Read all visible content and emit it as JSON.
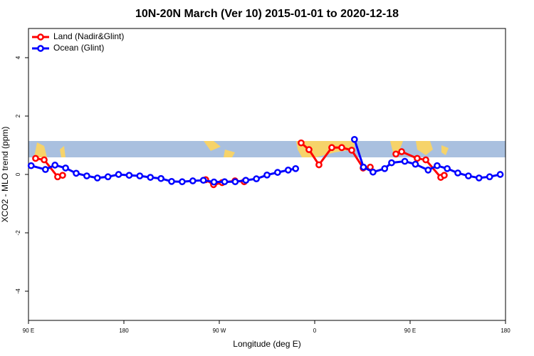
{
  "chart_data": {
    "type": "line",
    "title": "10N-20N March (Ver 10)   2015-01-01 to 2020-12-18",
    "x_label": "Longitude (deg E)",
    "y_label": "XCO2 - MLO trend (ppm)",
    "xlim": [
      90,
      540
    ],
    "ylim": [
      -5,
      5
    ],
    "xticks": [
      {
        "value": 90,
        "label": "90 E"
      },
      180,
      {
        "value": 270,
        "label": "90 W"
      },
      {
        "value": 360,
        "label": "0"
      },
      {
        "value": 450,
        "label": "90 E"
      },
      {
        "value": 540,
        "label": "180"
      }
    ],
    "yticks": [
      -4,
      -2,
      0,
      2,
      4
    ],
    "legend": "top-left",
    "series": [
      {
        "name": "Land (Nadir&Glint)",
        "color": "#ff0000",
        "x": [
          96.7,
          104.8,
          117.5,
          122.2,
          190,
          257.2,
          264.6,
          272.7,
          284.8,
          293.5,
          320,
          347.2,
          354.6,
          364,
          376.1,
          385.5,
          394.9,
          405.7,
          412.4,
          425,
          436.6,
          442,
          456.7,
          464.8,
          478.9,
          482.2
        ],
        "values": [
          0.55,
          0.5,
          -0.08,
          -0.03,
          null,
          -0.18,
          -0.35,
          -0.28,
          -0.22,
          -0.25,
          null,
          1.08,
          0.85,
          0.33,
          0.92,
          0.92,
          0.83,
          0.22,
          0.25,
          null,
          0.7,
          0.78,
          0.55,
          0.5,
          -0.1,
          -0.03
        ]
      },
      {
        "name": "Ocean (Glint)",
        "color": "#0000ff",
        "x": [
          92.5,
          106,
          115,
          125,
          135,
          145,
          155,
          165,
          175,
          185,
          195,
          205,
          215,
          225,
          235,
          245,
          255,
          265,
          275,
          285,
          295,
          305,
          315,
          325,
          335,
          342,
          370,
          397.5,
          406,
          415,
          426,
          432.5,
          445,
          455,
          467,
          475.5,
          485,
          495,
          505,
          515,
          525,
          535
        ],
        "values": [
          0.3,
          0.17,
          0.32,
          0.22,
          0.04,
          -0.05,
          -0.12,
          -0.08,
          0.0,
          -0.03,
          -0.05,
          -0.1,
          -0.14,
          -0.24,
          -0.25,
          -0.22,
          -0.2,
          -0.26,
          -0.25,
          -0.25,
          -0.2,
          -0.15,
          -0.02,
          0.07,
          0.15,
          0.2,
          null,
          1.2,
          0.25,
          0.08,
          0.2,
          0.4,
          0.45,
          0.35,
          0.15,
          0.3,
          0.2,
          0.05,
          -0.05,
          -0.12,
          -0.08,
          0.0
        ]
      }
    ]
  }
}
